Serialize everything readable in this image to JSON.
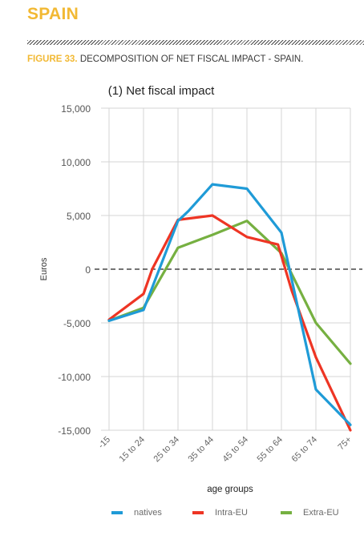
{
  "header": {
    "section_title": "SPAIN",
    "figure_number": "FIGURE 33.",
    "figure_title": " DECOMPOSITION OF NET FISCAL IMPACT - SPAIN."
  },
  "colors": {
    "accent": "#f2b934",
    "natives": "#1f9bd7",
    "intra_eu": "#ee3524",
    "extra_eu": "#76b041"
  },
  "chart_data": {
    "type": "line",
    "title": "(1) Net fiscal impact",
    "xlabel": "age groups",
    "ylabel": "Euros",
    "categories": [
      "-15",
      "15 to 24",
      "25 to 34",
      "35 to 44",
      "45 to 54",
      "55 to 64",
      "65 to 74",
      "75+"
    ],
    "yticks": [
      15000,
      10000,
      5000,
      0,
      -5000,
      -10000,
      -15000
    ],
    "ytick_labels": [
      "15,000",
      "10,000",
      "5,000",
      "0",
      "-5,000",
      "-10,000",
      "-15,000"
    ],
    "ylim": [
      -15000,
      15000
    ],
    "grid": true,
    "legend_position": "bottom",
    "zero_line": "dashed",
    "series": [
      {
        "name": "natives",
        "color": "#1f9bd7",
        "x": [
          0,
          1,
          2,
          2.3,
          3,
          4,
          5,
          6,
          7
        ],
        "values": [
          -4800,
          -3800,
          4500,
          5400,
          7900,
          7500,
          3400,
          -11200,
          -14500
        ]
      },
      {
        "name": "Intra-EU",
        "color": "#ee3524",
        "x": [
          0,
          1,
          1.25,
          2,
          3,
          4,
          4.9,
          5.3,
          6,
          7
        ],
        "values": [
          -4700,
          -2300,
          0,
          4600,
          5000,
          3000,
          2300,
          -2000,
          -8200,
          -15000
        ]
      },
      {
        "name": "Extra-EU",
        "color": "#76b041",
        "x": [
          0,
          1,
          2,
          3,
          4,
          5,
          6,
          7
        ],
        "values": [
          -4800,
          -3600,
          2000,
          3200,
          4500,
          1500,
          -5000,
          -8800
        ]
      }
    ]
  }
}
